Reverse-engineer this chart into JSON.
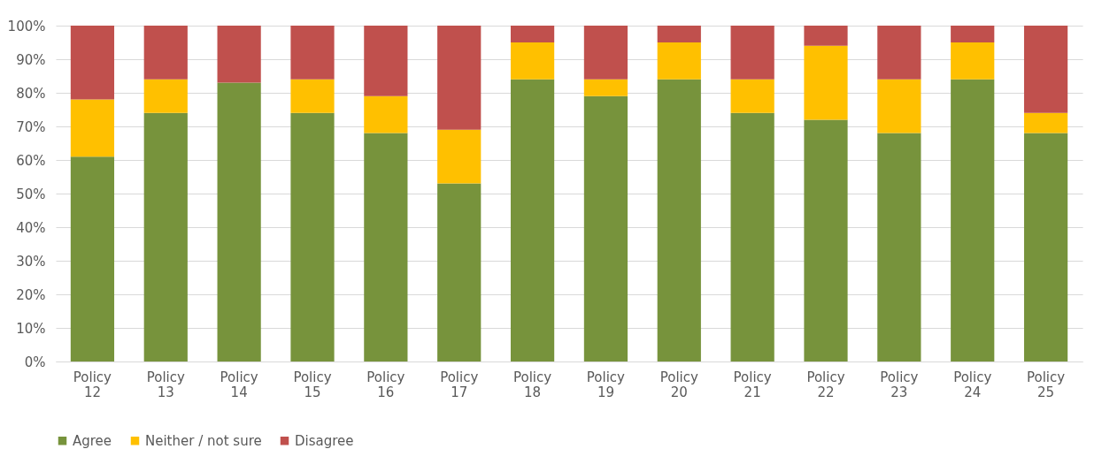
{
  "chart_data": {
    "type": "bar",
    "stacked": true,
    "categories": [
      "Policy 12",
      "Policy 13",
      "Policy 14",
      "Policy 15",
      "Policy 16",
      "Policy 17",
      "Policy 18",
      "Policy 19",
      "Policy 20",
      "Policy 21",
      "Policy 22",
      "Policy 23",
      "Policy 24",
      "Policy 25"
    ],
    "series": [
      {
        "name": "Agree",
        "color": "#77933c",
        "values": [
          61,
          74,
          83,
          74,
          68,
          53,
          84,
          79,
          84,
          74,
          72,
          68,
          84,
          68
        ]
      },
      {
        "name": "Neither / not sure",
        "color": "#ffc000",
        "values": [
          17,
          10,
          0,
          10,
          11,
          16,
          11,
          5,
          11,
          10,
          22,
          16,
          11,
          6
        ]
      },
      {
        "name": "Disagree",
        "color": "#c0504d",
        "values": [
          22,
          16,
          17,
          16,
          21,
          31,
          5,
          16,
          5,
          16,
          6,
          16,
          5,
          26
        ]
      }
    ],
    "ylim": [
      0,
      100
    ],
    "yticks": [
      {
        "value": 0,
        "label": "0%"
      },
      {
        "value": 10,
        "label": "10%"
      },
      {
        "value": 20,
        "label": "20%"
      },
      {
        "value": 30,
        "label": "30%"
      },
      {
        "value": 40,
        "label": "40%"
      },
      {
        "value": 50,
        "label": "50%"
      },
      {
        "value": 60,
        "label": "60%"
      },
      {
        "value": 70,
        "label": "70%"
      },
      {
        "value": 80,
        "label": "80%"
      },
      {
        "value": 90,
        "label": "90%"
      },
      {
        "value": 100,
        "label": "100%"
      }
    ],
    "grid": "y",
    "legend": "bottom"
  }
}
